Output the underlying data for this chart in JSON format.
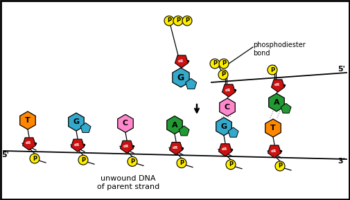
{
  "bg_color": "#ffffff",
  "colors": {
    "red": "#cc1111",
    "cyan": "#33aacc",
    "orange": "#ff8800",
    "green": "#229933",
    "pink": "#ff88cc",
    "yellow": "#ffee00",
    "dark_green": "#226622"
  },
  "label_bottom": "unwound DNA\nof parent strand",
  "label_phospho": "phosphodiester\nbond",
  "bases_bottom": [
    "T",
    "G",
    "C",
    "A",
    "G",
    "T"
  ],
  "base_colors_bottom": [
    "orange",
    "cyan",
    "pink",
    "green",
    "cyan",
    "orange"
  ],
  "new_bases": [
    "C",
    "A"
  ],
  "new_base_colors": [
    "pink",
    "green"
  ]
}
